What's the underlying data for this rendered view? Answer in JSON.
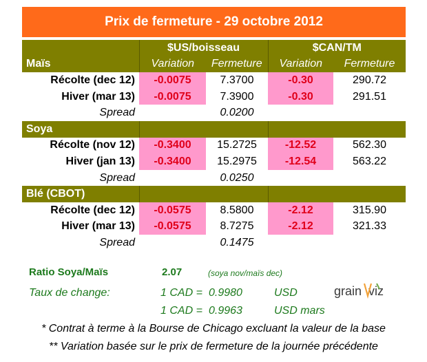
{
  "title": "Prix de fermeture - 29 octobre 2012",
  "groups": {
    "us": "$US/boisseau",
    "can": "$CAN/TM"
  },
  "subheaders": {
    "variation": "Variation",
    "fermeture": "Fermeture"
  },
  "sections": [
    {
      "name": "Maïs",
      "rows": [
        {
          "label": "Récolte (dec 12)",
          "us_var": "-0.0075",
          "us_close": "7.3700",
          "can_var": "-0.30",
          "can_close": "290.72"
        },
        {
          "label": "Hiver (mar 13)",
          "us_var": "-0.0075",
          "us_close": "7.3900",
          "can_var": "-0.30",
          "can_close": "291.51"
        }
      ],
      "spread_label": "Spread",
      "spread": "0.0200"
    },
    {
      "name": "Soya",
      "rows": [
        {
          "label": "Récolte (nov 12)",
          "us_var": "-0.3400",
          "us_close": "15.2725",
          "can_var": "-12.52",
          "can_close": "562.30"
        },
        {
          "label": "Hiver (jan 13)",
          "us_var": "-0.3400",
          "us_close": "15.2975",
          "can_var": "-12.54",
          "can_close": "563.22"
        }
      ],
      "spread_label": "Spread",
      "spread": "0.0250"
    },
    {
      "name": "Blé (CBOT)",
      "rows": [
        {
          "label": "Récolte (dec 12)",
          "us_var": "-0.0575",
          "us_close": "8.5800",
          "can_var": "-2.12",
          "can_close": "315.90"
        },
        {
          "label": "Hiver (mar 13)",
          "us_var": "-0.0575",
          "us_close": "8.7275",
          "can_var": "-2.12",
          "can_close": "321.33"
        }
      ],
      "spread_label": "Spread",
      "spread": "0.1475"
    }
  ],
  "ratio": {
    "label": "Ratio Soya/Maïs",
    "value": "2.07",
    "note": "(soya nov/maïs dec)"
  },
  "exchange": {
    "label": "Taux de change:",
    "rows": [
      {
        "lhs": "1 CAD =",
        "rate": "0.9980",
        "unit": "USD"
      },
      {
        "lhs": "1 CAD =",
        "rate": "0.9963",
        "unit": "USD mars"
      }
    ]
  },
  "logo": {
    "text_left": "grain",
    "text_right": "viz"
  },
  "footnotes": [
    "* Contrat à terme à la Bourse de Chicago excluant la valeur de la base",
    "** Variation basée sur le prix de fermeture de la journée précédente"
  ],
  "colors": {
    "title_bg": "#ff6a1a",
    "section_bg": "#7f7f00",
    "negative_bg": "#ff99cc",
    "negative_text": "#e0001a",
    "green_text": "#1d7a1d"
  }
}
